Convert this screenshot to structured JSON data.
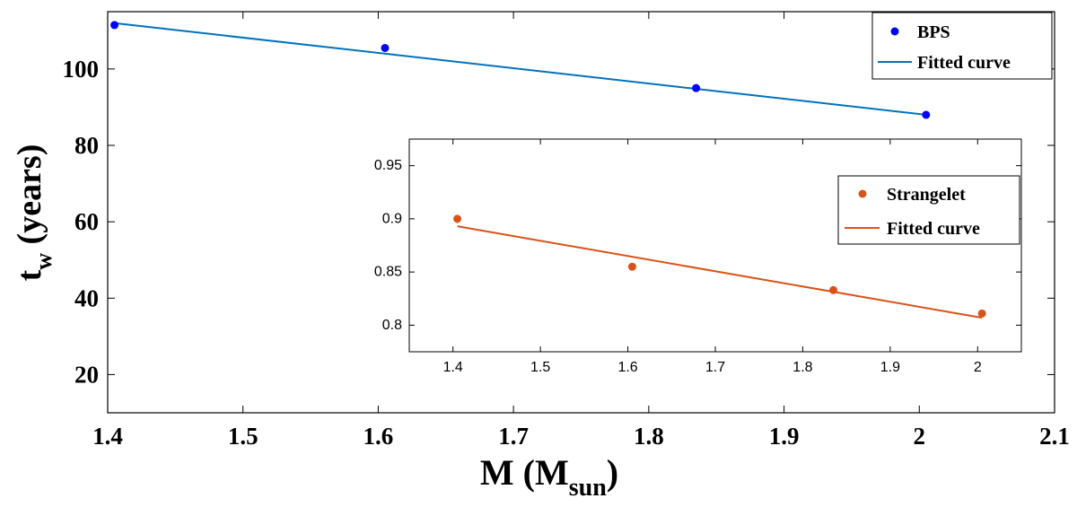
{
  "chart_data": [
    {
      "type": "scatter",
      "role": "main",
      "xlabel": {
        "main": "M (M",
        "sub": "sun",
        "close": ")"
      },
      "ylabel": {
        "main": "t",
        "sub": "w",
        "rest": " (years)"
      },
      "xlim": [
        1.4,
        2.1
      ],
      "ylim": [
        10,
        115
      ],
      "xticks": [
        1.4,
        1.5,
        1.6,
        1.7,
        1.8,
        1.9,
        2,
        2.1
      ],
      "xtick_labels": [
        "1.4",
        "1.5",
        "1.6",
        "1.7",
        "1.8",
        "1.9",
        "2",
        "2.1"
      ],
      "yticks": [
        20,
        40,
        60,
        80,
        100
      ],
      "ytick_labels": [
        "20",
        "40",
        "60",
        "80",
        "100"
      ],
      "grid": false,
      "legend_position": "top-right",
      "series": [
        {
          "name": "BPS",
          "kind": "markers",
          "color": "#0000ff",
          "x": [
            1.405,
            1.605,
            1.835,
            2.005
          ],
          "y": [
            111.5,
            105.5,
            95,
            88
          ]
        },
        {
          "name": "Fitted curve",
          "kind": "line",
          "color": "#0072bd",
          "x": [
            1.405,
            2.005
          ],
          "y": [
            112,
            88
          ]
        }
      ]
    },
    {
      "type": "scatter",
      "role": "inset",
      "xlim": [
        1.35,
        2.05
      ],
      "ylim": [
        0.775,
        0.975
      ],
      "xticks": [
        1.4,
        1.5,
        1.6,
        1.7,
        1.8,
        1.9,
        2
      ],
      "xtick_labels": [
        "1.4",
        "1.5",
        "1.6",
        "1.7",
        "1.8",
        "1.9",
        "2"
      ],
      "yticks": [
        0.8,
        0.85,
        0.9,
        0.95
      ],
      "ytick_labels": [
        "0.8",
        "0.85",
        "0.9",
        "0.95"
      ],
      "grid": false,
      "legend_position": "top-right",
      "series": [
        {
          "name": "Strangelet",
          "kind": "markers",
          "color": "#d95319",
          "x": [
            1.405,
            1.605,
            1.835,
            2.005
          ],
          "y": [
            0.9,
            0.855,
            0.833,
            0.811
          ]
        },
        {
          "name": "Fitted curve",
          "kind": "line",
          "color": "#d95319",
          "x": [
            1.405,
            2.005
          ],
          "y": [
            0.893,
            0.807
          ]
        }
      ]
    }
  ]
}
